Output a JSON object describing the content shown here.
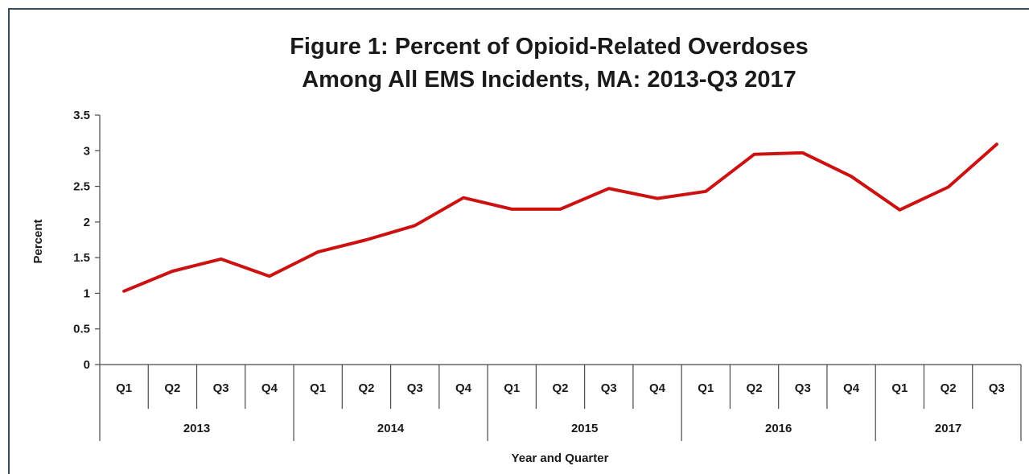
{
  "chart_data": {
    "type": "line",
    "title": "Figure 1: Percent of Opioid-Related Overdoses Among All EMS Incidents, MA: 2013-Q3 2017",
    "title_lines": [
      "Figure 1: Percent of Opioid-Related Overdoses",
      "Among All EMS Incidents, MA: 2013-Q3 2017"
    ],
    "xlabel": "Year and Quarter",
    "ylabel": "Percent",
    "ylim": [
      0,
      3.5
    ],
    "yticks": [
      "0",
      "0.5",
      "1",
      "1.5",
      "2",
      "2.5",
      "3",
      "3.5"
    ],
    "grid": false,
    "legend": "none",
    "years": [
      {
        "label": "2013",
        "quarters": [
          "Q1",
          "Q2",
          "Q3",
          "Q4"
        ]
      },
      {
        "label": "2014",
        "quarters": [
          "Q1",
          "Q2",
          "Q3",
          "Q4"
        ]
      },
      {
        "label": "2015",
        "quarters": [
          "Q1",
          "Q2",
          "Q3",
          "Q4"
        ]
      },
      {
        "label": "2016",
        "quarters": [
          "Q1",
          "Q2",
          "Q3",
          "Q4"
        ]
      },
      {
        "label": "2017",
        "quarters": [
          "Q1",
          "Q2",
          "Q3"
        ]
      }
    ],
    "series": [
      {
        "color": "#cc1111",
        "values": [
          1.03,
          1.31,
          1.48,
          1.24,
          1.58,
          1.75,
          1.95,
          2.34,
          2.18,
          2.18,
          2.47,
          2.33,
          2.43,
          2.95,
          2.97,
          2.64,
          2.17,
          2.49,
          3.09
        ]
      }
    ]
  }
}
